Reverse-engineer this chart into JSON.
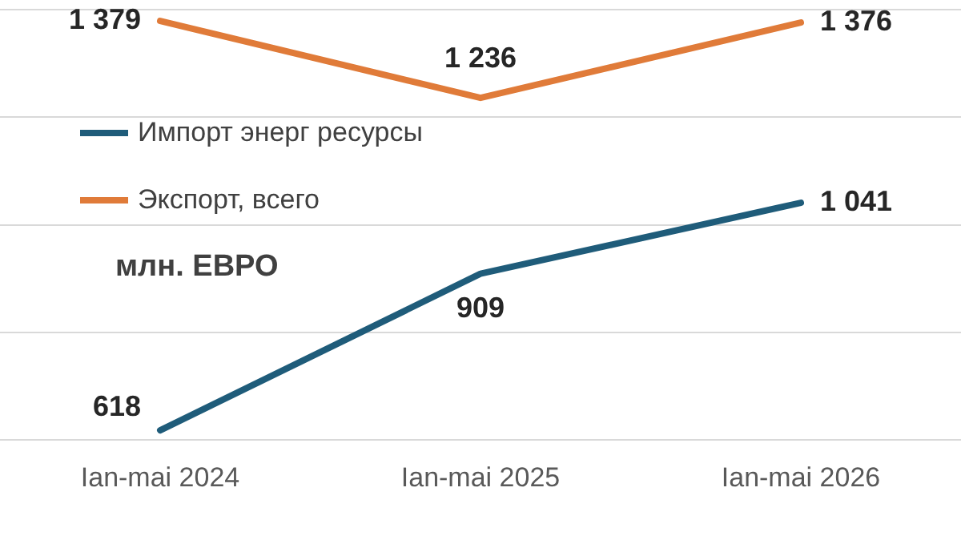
{
  "chart_data": {
    "type": "line",
    "categories": [
      "Ian-mai 2024",
      "Ian-mai 2025",
      "Ian-mai 2026"
    ],
    "series": [
      {
        "name": "Импорт энерг ресурсы",
        "color": "#1f5c7a",
        "values": [
          618,
          909,
          1041
        ]
      },
      {
        "name": "Экспорт, всего",
        "color": "#e07b39",
        "values": [
          1379,
          1236,
          1376
        ]
      }
    ],
    "ylim": [
      600,
      1400
    ],
    "yticks": [
      600,
      800,
      1000,
      1200,
      1400
    ],
    "grid": "y",
    "tick_labels": "x",
    "legend": "left",
    "data_labels": true,
    "marker": "none",
    "line_style": "solid",
    "annotations": [
      "млн. ЕВРО"
    ]
  }
}
